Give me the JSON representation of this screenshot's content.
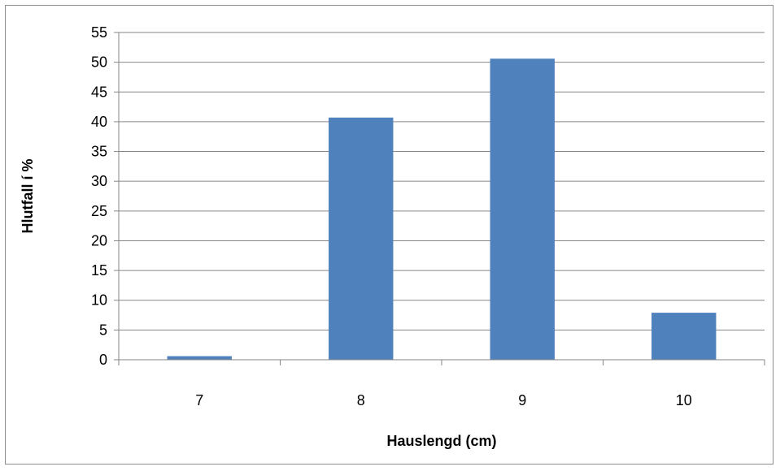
{
  "chart_data": {
    "type": "bar",
    "title": "",
    "xlabel": "Hauslengd (cm)",
    "ylabel": "Hlutfall í %",
    "categories": [
      "7",
      "8",
      "9",
      "10"
    ],
    "values": [
      0.6,
      40.7,
      50.6,
      7.9
    ],
    "ylim": [
      0,
      55
    ],
    "ytick_step": 5,
    "yticks": [
      "0",
      "5",
      "10",
      "15",
      "20",
      "25",
      "30",
      "35",
      "40",
      "45",
      "50",
      "55"
    ],
    "grid": true,
    "legend": "none",
    "bar_color": "#4f81bd",
    "grid_color": "#868686",
    "axis_color": "#868686"
  }
}
